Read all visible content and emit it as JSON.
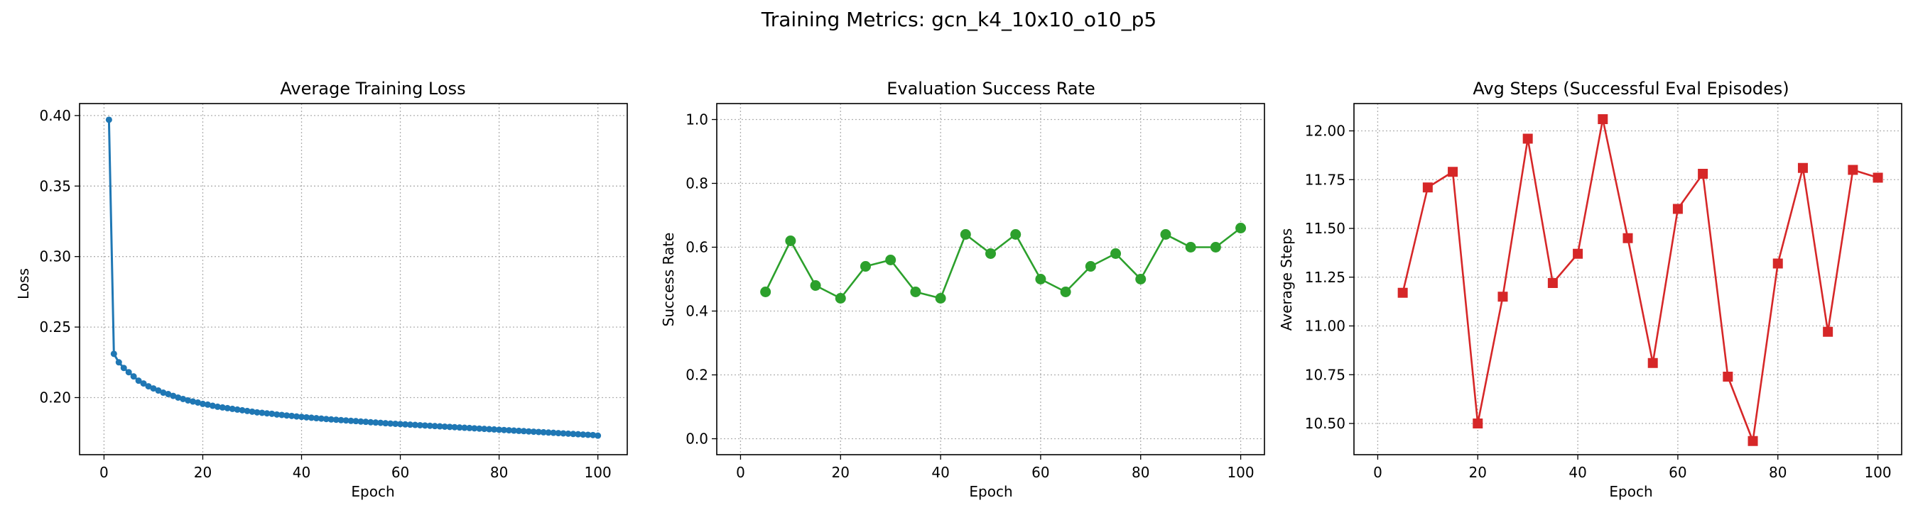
{
  "figure": {
    "title": "Training Metrics: gcn_k4_10x10_o10_p5"
  },
  "chart_data": [
    {
      "type": "line",
      "title": "Average Training Loss",
      "xlabel": "Epoch",
      "ylabel": "Loss",
      "xlim": [
        -4.95,
        105.95
      ],
      "ylim": [
        0.1595,
        0.4085
      ],
      "xticks": [
        0,
        20,
        40,
        60,
        80,
        100
      ],
      "yticks": [
        0.2,
        0.25,
        0.3,
        0.35,
        0.4
      ],
      "ytick_decimals": 2,
      "grid": true,
      "color": "#1f77b4",
      "marker": "circle-small",
      "series": [
        {
          "x": [
            1,
            2,
            3,
            4,
            5,
            6,
            7,
            8,
            9,
            10,
            11,
            12,
            13,
            14,
            15,
            16,
            17,
            18,
            19,
            20,
            21,
            22,
            23,
            24,
            25,
            26,
            27,
            28,
            29,
            30,
            31,
            32,
            33,
            34,
            35,
            36,
            37,
            38,
            39,
            40,
            41,
            42,
            43,
            44,
            45,
            46,
            47,
            48,
            49,
            50,
            51,
            52,
            53,
            54,
            55,
            56,
            57,
            58,
            59,
            60,
            61,
            62,
            63,
            64,
            65,
            66,
            67,
            68,
            69,
            70,
            71,
            72,
            73,
            74,
            75,
            76,
            77,
            78,
            79,
            80,
            81,
            82,
            83,
            84,
            85,
            86,
            87,
            88,
            89,
            90,
            91,
            92,
            93,
            94,
            95,
            96,
            97,
            98,
            99,
            100
          ],
          "values": [
            0.397,
            0.231,
            0.225,
            0.221,
            0.218,
            0.215,
            0.212,
            0.21,
            0.208,
            0.2065,
            0.205,
            0.2035,
            0.2025,
            0.2012,
            0.2,
            0.199,
            0.198,
            0.1972,
            0.1965,
            0.1955,
            0.195,
            0.1942,
            0.1935,
            0.193,
            0.1925,
            0.192,
            0.1915,
            0.191,
            0.1905,
            0.19,
            0.1895,
            0.1892,
            0.1888,
            0.1885,
            0.188,
            0.1877,
            0.1873,
            0.187,
            0.1866,
            0.1863,
            0.186,
            0.1857,
            0.1854,
            0.1851,
            0.1848,
            0.1845,
            0.1843,
            0.184,
            0.1838,
            0.1835,
            0.1833,
            0.183,
            0.1828,
            0.1825,
            0.1823,
            0.1821,
            0.1818,
            0.1816,
            0.1814,
            0.1812,
            0.181,
            0.1808,
            0.1806,
            0.1804,
            0.1802,
            0.18,
            0.1798,
            0.1796,
            0.1794,
            0.1792,
            0.179,
            0.1788,
            0.1786,
            0.1784,
            0.1782,
            0.178,
            0.1778,
            0.1776,
            0.1774,
            0.1772,
            0.177,
            0.1768,
            0.1766,
            0.1764,
            0.1762,
            0.176,
            0.1758,
            0.1756,
            0.1754,
            0.1752,
            0.175,
            0.1748,
            0.1746,
            0.1744,
            0.1742,
            0.174,
            0.1738,
            0.1736,
            0.1734,
            0.173
          ]
        }
      ]
    },
    {
      "type": "line",
      "title": "Evaluation Success Rate",
      "xlabel": "Epoch",
      "ylabel": "Success Rate",
      "xlim": [
        -4.75,
        104.75
      ],
      "ylim": [
        -0.05,
        1.05
      ],
      "xticks": [
        0,
        20,
        40,
        60,
        80,
        100
      ],
      "yticks": [
        0.0,
        0.2,
        0.4,
        0.6,
        0.8,
        1.0
      ],
      "ytick_decimals": 1,
      "grid": true,
      "color": "#2ca02c",
      "marker": "circle",
      "series": [
        {
          "x": [
            5,
            10,
            15,
            20,
            25,
            30,
            35,
            40,
            45,
            50,
            55,
            60,
            65,
            70,
            75,
            80,
            85,
            90,
            95,
            100
          ],
          "values": [
            0.46,
            0.62,
            0.48,
            0.44,
            0.54,
            0.56,
            0.46,
            0.44,
            0.64,
            0.58,
            0.64,
            0.5,
            0.46,
            0.54,
            0.58,
            0.5,
            0.64,
            0.6,
            0.6,
            0.66
          ]
        }
      ]
    },
    {
      "type": "line",
      "title": "Avg Steps (Successful Eval Episodes)",
      "xlabel": "Epoch",
      "ylabel": "Average Steps",
      "xlim": [
        -4.75,
        104.75
      ],
      "ylim": [
        10.34,
        12.14
      ],
      "xticks": [
        0,
        20,
        40,
        60,
        80,
        100
      ],
      "yticks": [
        10.5,
        10.75,
        11.0,
        11.25,
        11.5,
        11.75,
        12.0
      ],
      "ytick_decimals": 2,
      "grid": true,
      "color": "#d62728",
      "marker": "square",
      "series": [
        {
          "x": [
            5,
            10,
            15,
            20,
            25,
            30,
            35,
            40,
            45,
            50,
            55,
            60,
            65,
            70,
            75,
            80,
            85,
            90,
            95,
            100
          ],
          "values": [
            11.17,
            11.71,
            11.79,
            10.5,
            11.15,
            11.96,
            11.22,
            11.37,
            12.06,
            11.45,
            10.81,
            11.6,
            11.78,
            10.74,
            10.41,
            11.32,
            11.81,
            10.97,
            11.8,
            11.76
          ]
        }
      ]
    }
  ]
}
